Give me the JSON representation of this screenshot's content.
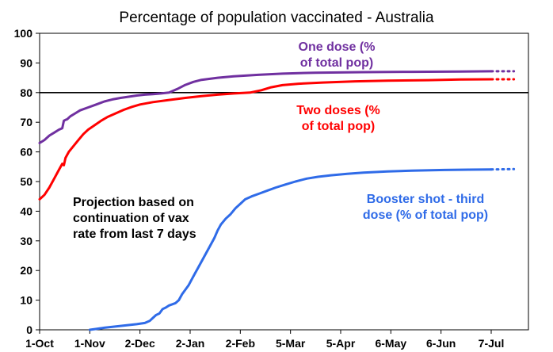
{
  "chart_data": {
    "type": "line",
    "title": "Percentage of population vaccinated - Australia",
    "xlabel": "",
    "ylabel": "",
    "x_tick_labels": [
      "1-Oct",
      "1-Nov",
      "2-Dec",
      "2-Jan",
      "2-Feb",
      "5-Mar",
      "5-Apr",
      "6-May",
      "6-Jun",
      "7-Jul"
    ],
    "x_tick_days": [
      0,
      31,
      62,
      93,
      124,
      155,
      186,
      217,
      248,
      279
    ],
    "ylim": [
      0,
      100
    ],
    "y_ticks": [
      0,
      10,
      20,
      30,
      40,
      50,
      60,
      70,
      80,
      90,
      100
    ],
    "y_tick_labels": [
      "0",
      "10",
      "20",
      "30",
      "40",
      "50",
      "60",
      "70",
      "80",
      "90",
      "100"
    ],
    "x_range_days": [
      0,
      279
    ],
    "projection_end_day": 293,
    "reference_line": {
      "y": 80,
      "color": "#000000"
    },
    "series": [
      {
        "name": "One dose (% of total pop)",
        "label_lines": [
          "One dose (%",
          "of total pop)"
        ],
        "color": "#7030a0",
        "points": [
          [
            0,
            63
          ],
          [
            3,
            64
          ],
          [
            6,
            65.5
          ],
          [
            9,
            66.5
          ],
          [
            12,
            67.5
          ],
          [
            14,
            68
          ],
          [
            15,
            70.5
          ],
          [
            16,
            70.8
          ],
          [
            17,
            71
          ],
          [
            19,
            72
          ],
          [
            22,
            73
          ],
          [
            25,
            74
          ],
          [
            30,
            75
          ],
          [
            35,
            76
          ],
          [
            40,
            77
          ],
          [
            45,
            77.7
          ],
          [
            50,
            78.2
          ],
          [
            55,
            78.6
          ],
          [
            60,
            79
          ],
          [
            65,
            79.3
          ],
          [
            70,
            79.5
          ],
          [
            75,
            79.7
          ],
          [
            80,
            80
          ],
          [
            85,
            81.2
          ],
          [
            90,
            82.6
          ],
          [
            95,
            83.6
          ],
          [
            100,
            84.3
          ],
          [
            110,
            85
          ],
          [
            120,
            85.5
          ],
          [
            135,
            86
          ],
          [
            150,
            86.4
          ],
          [
            170,
            86.7
          ],
          [
            200,
            86.9
          ],
          [
            230,
            87
          ],
          [
            260,
            87.1
          ],
          [
            279,
            87.2
          ]
        ],
        "projection": [
          [
            279,
            87.2
          ],
          [
            293,
            87.2
          ]
        ]
      },
      {
        "name": "Two doses (% of total pop)",
        "label_lines": [
          "Two doses (%",
          "of total pop)"
        ],
        "color": "#ff0000",
        "points": [
          [
            0,
            44
          ],
          [
            3,
            45.5
          ],
          [
            6,
            48
          ],
          [
            9,
            51
          ],
          [
            12,
            54
          ],
          [
            14,
            56
          ],
          [
            15,
            55.5
          ],
          [
            16,
            58
          ],
          [
            18,
            60
          ],
          [
            21,
            62
          ],
          [
            24,
            64
          ],
          [
            27,
            66
          ],
          [
            30,
            67.5
          ],
          [
            34,
            69
          ],
          [
            38,
            70.5
          ],
          [
            42,
            71.8
          ],
          [
            47,
            73
          ],
          [
            52,
            74.2
          ],
          [
            57,
            75.2
          ],
          [
            62,
            76
          ],
          [
            70,
            76.8
          ],
          [
            80,
            77.5
          ],
          [
            90,
            78.2
          ],
          [
            100,
            78.8
          ],
          [
            110,
            79.3
          ],
          [
            120,
            79.7
          ],
          [
            130,
            80
          ],
          [
            137,
            80.8
          ],
          [
            143,
            81.8
          ],
          [
            150,
            82.5
          ],
          [
            160,
            83
          ],
          [
            175,
            83.4
          ],
          [
            195,
            83.8
          ],
          [
            215,
            84
          ],
          [
            240,
            84.2
          ],
          [
            260,
            84.4
          ],
          [
            279,
            84.5
          ]
        ],
        "projection": [
          [
            279,
            84.5
          ],
          [
            293,
            84.5
          ]
        ]
      },
      {
        "name": "Booster shot - third dose (% of total pop)",
        "label_lines": [
          "Booster shot - third",
          "dose (% of total pop)"
        ],
        "color": "#2f6be8",
        "points": [
          [
            31,
            0
          ],
          [
            35,
            0.3
          ],
          [
            40,
            0.7
          ],
          [
            45,
            1
          ],
          [
            50,
            1.3
          ],
          [
            55,
            1.6
          ],
          [
            60,
            1.9
          ],
          [
            65,
            2.3
          ],
          [
            68,
            3
          ],
          [
            70,
            4
          ],
          [
            72,
            5
          ],
          [
            74,
            5.5
          ],
          [
            76,
            7
          ],
          [
            78,
            7.5
          ],
          [
            80,
            8.2
          ],
          [
            84,
            9
          ],
          [
            86,
            10
          ],
          [
            88,
            12
          ],
          [
            90,
            13.5
          ],
          [
            92,
            15
          ],
          [
            94,
            17
          ],
          [
            96,
            19
          ],
          [
            98,
            21
          ],
          [
            100,
            23
          ],
          [
            102,
            25
          ],
          [
            104,
            27
          ],
          [
            106,
            29
          ],
          [
            108,
            31
          ],
          [
            110,
            33.5
          ],
          [
            112,
            35.5
          ],
          [
            115,
            37.5
          ],
          [
            118,
            39
          ],
          [
            121,
            41
          ],
          [
            124,
            42.5
          ],
          [
            127,
            44
          ],
          [
            131,
            45
          ],
          [
            136,
            46
          ],
          [
            141,
            47
          ],
          [
            146,
            48
          ],
          [
            152,
            49
          ],
          [
            158,
            50
          ],
          [
            165,
            51
          ],
          [
            172,
            51.6
          ],
          [
            180,
            52.1
          ],
          [
            190,
            52.6
          ],
          [
            200,
            53
          ],
          [
            215,
            53.4
          ],
          [
            230,
            53.7
          ],
          [
            250,
            53.9
          ],
          [
            265,
            54
          ],
          [
            279,
            54.1
          ]
        ],
        "projection": [
          [
            279,
            54.1
          ],
          [
            293,
            54.2
          ]
        ]
      }
    ],
    "annotations": {
      "projection_note_lines": [
        "Projection based on",
        "continuation of vax",
        "rate from last 7 days"
      ]
    }
  }
}
